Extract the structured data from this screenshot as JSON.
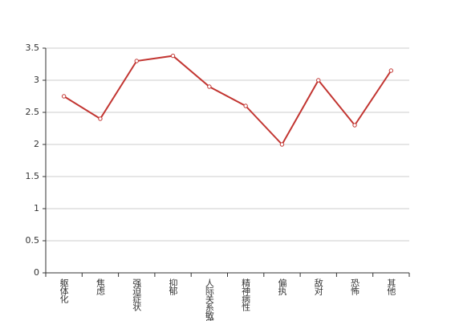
{
  "chart_data": {
    "type": "line",
    "categories": [
      "躯体化",
      "焦虑",
      "强迫症状",
      "抑郁",
      "人际关系敏感",
      "精神病性",
      "偏执",
      "敌对",
      "恐怖",
      "其他"
    ],
    "values": [
      2.75,
      2.4,
      3.3,
      3.38,
      2.9,
      2.6,
      2.0,
      3.0,
      2.3,
      3.15
    ],
    "color": "#c23531",
    "ylim": [
      0,
      3.5
    ],
    "yticks": [
      0,
      0.5,
      1,
      1.5,
      2,
      2.5,
      3,
      3.5
    ],
    "grid": true
  }
}
